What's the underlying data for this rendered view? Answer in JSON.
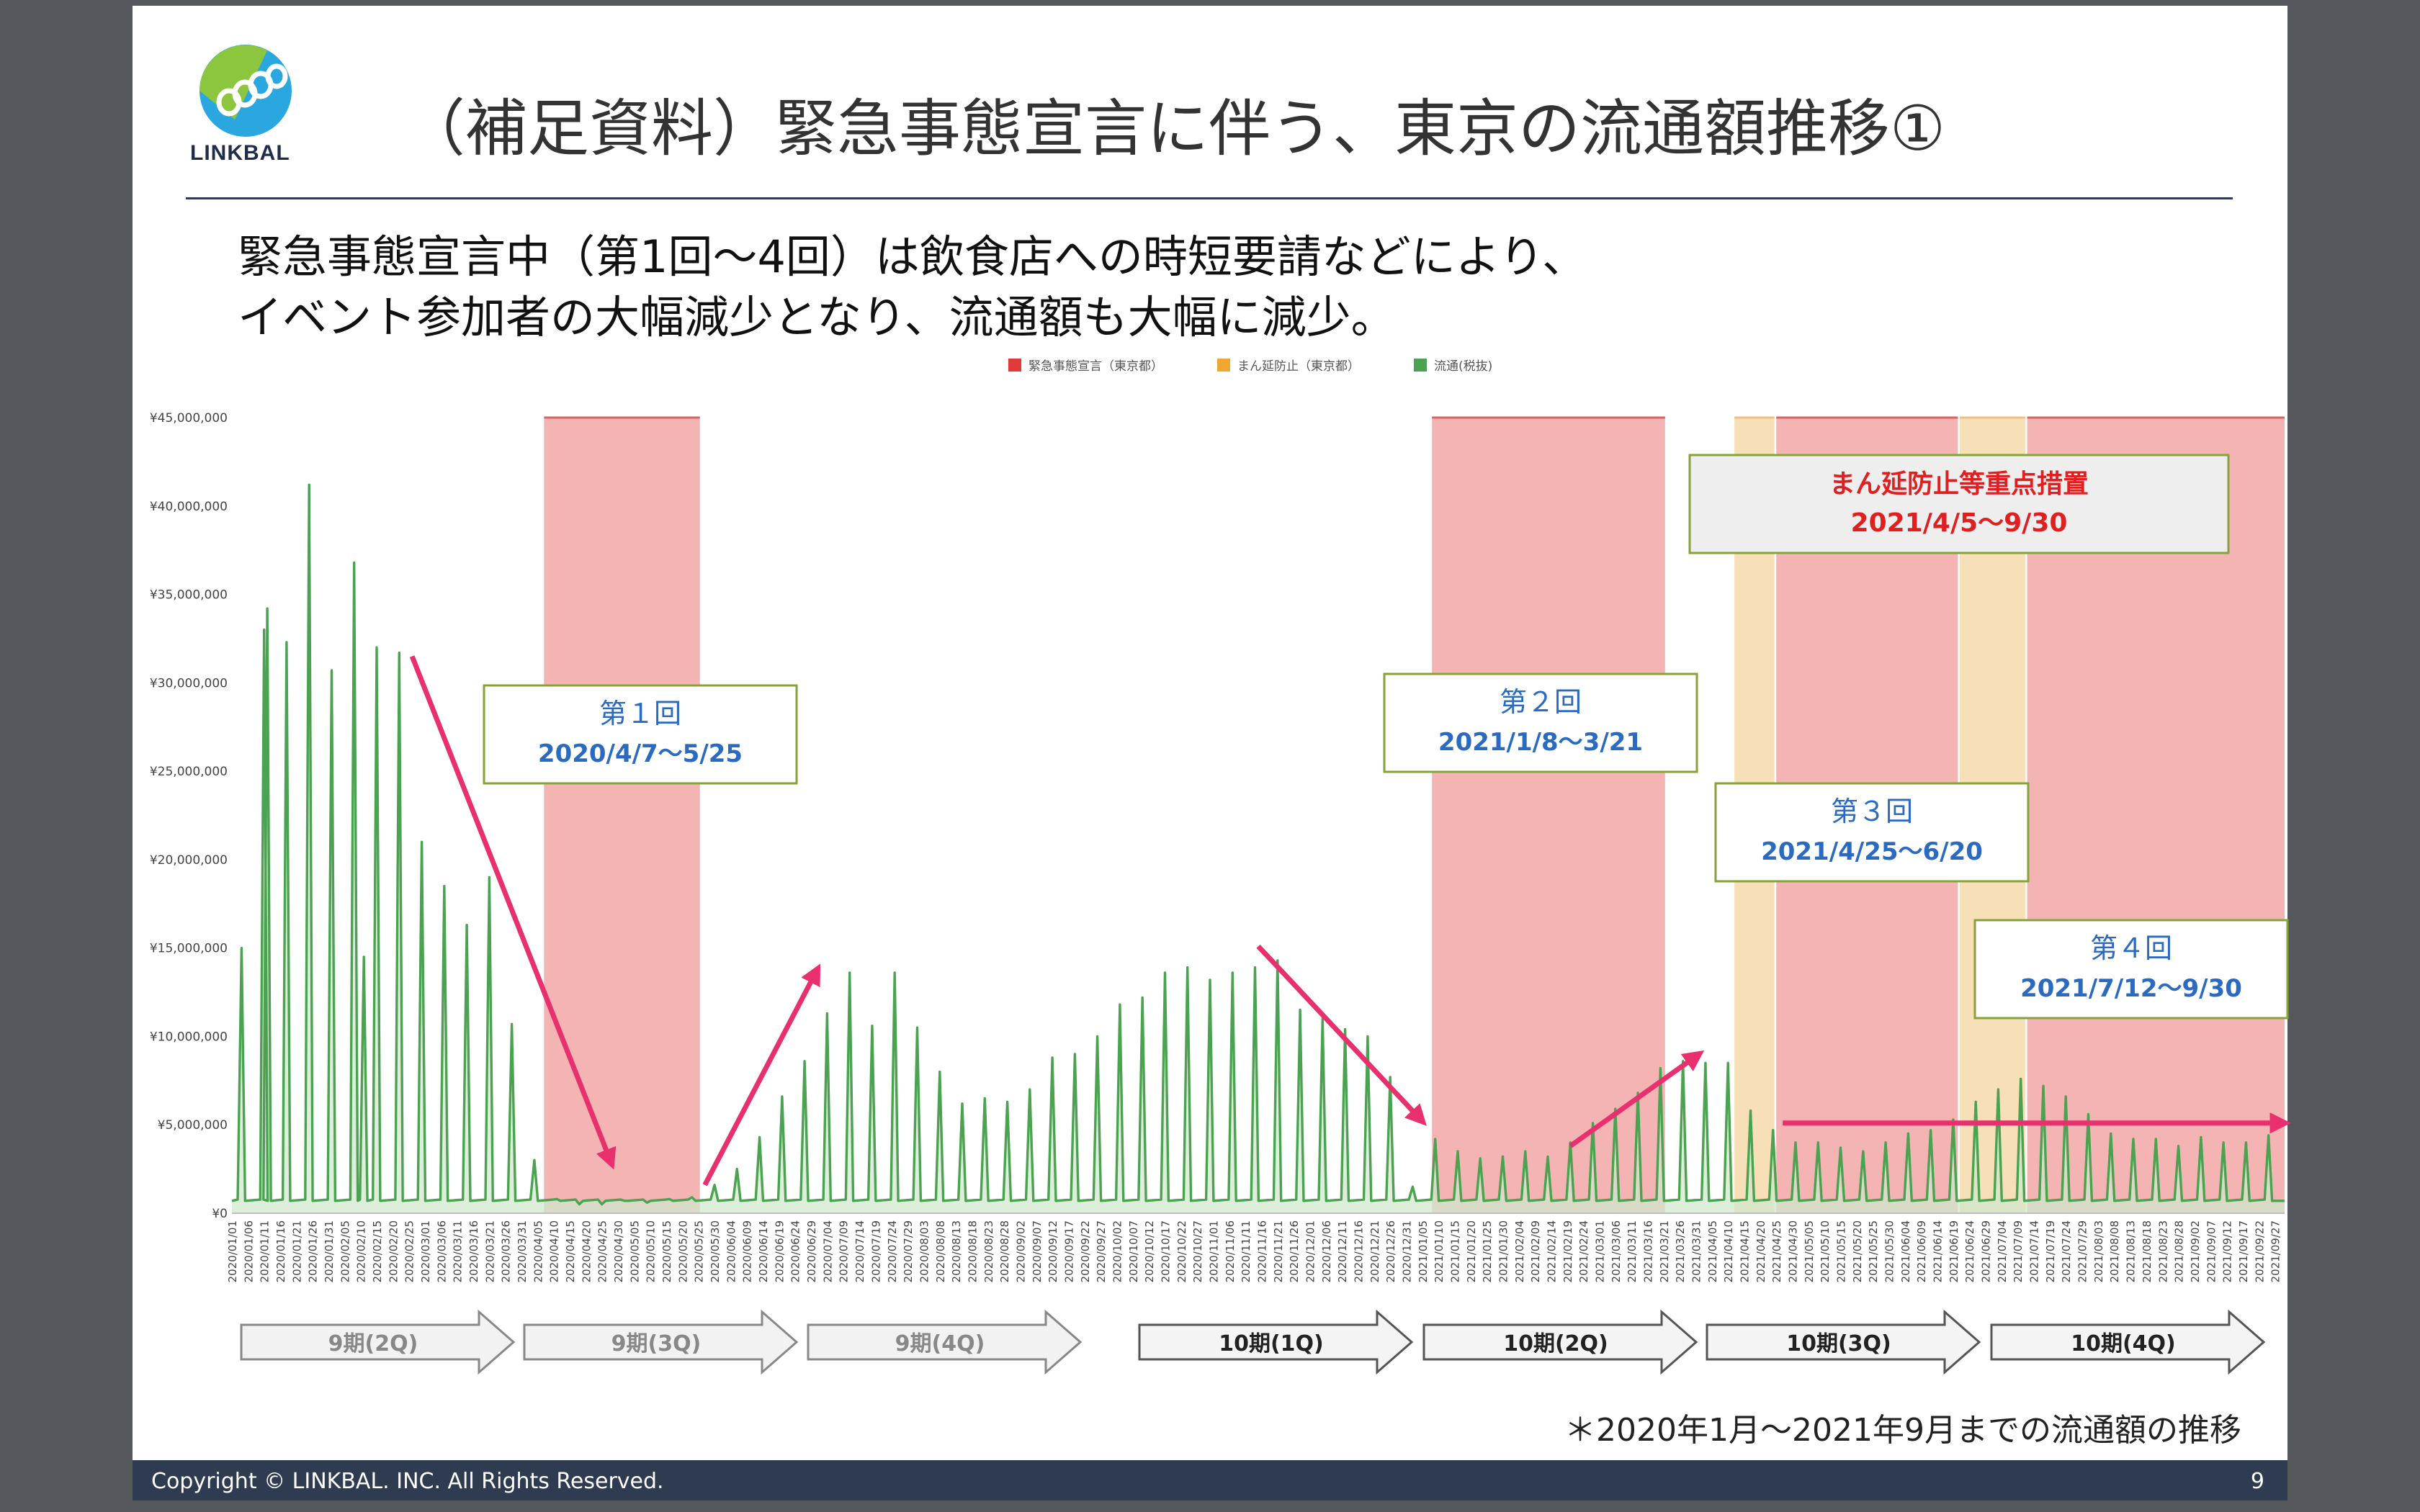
{
  "title": "（補足資料）緊急事態宣言に伴う、東京の流通額推移①",
  "logo_text": "LINKBAL",
  "subtitle_lines": [
    "緊急事態宣言中（第1回〜4回）は飲食店への時短要請などにより、",
    "イベント参加者の大幅減少となり、流通額も大幅に減少。"
  ],
  "footer": {
    "copyright": "Copyright © LINKBAL. INC. All Rights Reserved.",
    "page": "9"
  },
  "note": "＊2020年1月〜2021年9月までの流通額の推移",
  "colors": {
    "emergency": "#f4b4b4",
    "semi": "#f7dfb7",
    "line": "#4ba251",
    "fill": "#d2e8cd",
    "arrow": "#e8306f",
    "callout_border": "#86a33a",
    "callout_text": "#2a6ac0",
    "mambo_text": "#e02020"
  },
  "chart_data": {
    "type": "area",
    "y_ticks": [
      "¥45,000,000",
      "¥40,000,000",
      "¥35,000,000",
      "¥30,000,000",
      "¥25,000,000",
      "¥20,000,000",
      "¥15,000,000",
      "¥10,000,000",
      "¥5,000,000",
      "¥0"
    ],
    "ylim": [
      0,
      45000000
    ],
    "xlim": [
      "2020-01-01",
      "2021-09-30"
    ],
    "legend": [
      {
        "label": "緊急事態宣言（東京都）",
        "color": "#e03a3a"
      },
      {
        "label": "まん延防止（東京都）",
        "color": "#f0a830"
      },
      {
        "label": "流通(税抜)",
        "color": "#4ba251"
      }
    ],
    "x_ticks": [
      "2020/01/01",
      "2020/01/06",
      "2020/01/11",
      "2020/01/16",
      "2020/01/21",
      "2020/01/26",
      "2020/01/31",
      "2020/02/05",
      "2020/02/10",
      "2020/02/15",
      "2020/02/20",
      "2020/02/25",
      "2020/03/01",
      "2020/03/06",
      "2020/03/11",
      "2020/03/16",
      "2020/03/21",
      "2020/03/26",
      "2020/03/31",
      "2020/04/05",
      "2020/04/10",
      "2020/04/15",
      "2020/04/20",
      "2020/04/25",
      "2020/04/30",
      "2020/05/05",
      "2020/05/10",
      "2020/05/15",
      "2020/05/20",
      "2020/05/25",
      "2020/05/30",
      "2020/06/04",
      "2020/06/09",
      "2020/06/14",
      "2020/06/19",
      "2020/06/24",
      "2020/06/29",
      "2020/07/04",
      "2020/07/09",
      "2020/07/14",
      "2020/07/19",
      "2020/07/24",
      "2020/07/29",
      "2020/08/03",
      "2020/08/08",
      "2020/08/13",
      "2020/08/18",
      "2020/08/23",
      "2020/08/28",
      "2020/09/02",
      "2020/09/07",
      "2020/09/12",
      "2020/09/17",
      "2020/09/22",
      "2020/09/27",
      "2020/10/02",
      "2020/10/07",
      "2020/10/12",
      "2020/10/17",
      "2020/10/22",
      "2020/10/27",
      "2020/11/01",
      "2020/11/06",
      "2020/11/11",
      "2020/11/16",
      "2020/11/21",
      "2020/11/26",
      "2020/12/01",
      "2020/12/06",
      "2020/12/11",
      "2020/12/16",
      "2020/12/21",
      "2020/12/26",
      "2020/12/31",
      "2021/01/05",
      "2021/01/10",
      "2021/01/15",
      "2021/01/20",
      "2021/01/25",
      "2021/01/30",
      "2021/02/04",
      "2021/02/09",
      "2021/02/14",
      "2021/02/19",
      "2021/02/24",
      "2021/03/01",
      "2021/03/06",
      "2021/03/11",
      "2021/03/16",
      "2021/03/21",
      "2021/03/26",
      "2021/03/31",
      "2021/04/05",
      "2021/04/10",
      "2021/04/15",
      "2021/04/20",
      "2021/04/25",
      "2021/04/30",
      "2021/05/05",
      "2021/05/10",
      "2021/05/15",
      "2021/05/20",
      "2021/05/25",
      "2021/05/30",
      "2021/06/04",
      "2021/06/09",
      "2021/06/14",
      "2021/06/19",
      "2021/06/24",
      "2021/06/29",
      "2021/07/04",
      "2021/07/09",
      "2021/07/14",
      "2021/07/19",
      "2021/07/24",
      "2021/07/29",
      "2021/08/03",
      "2021/08/08",
      "2021/08/13",
      "2021/08/18",
      "2021/08/23",
      "2021/08/28",
      "2021/09/02",
      "2021/09/07",
      "2021/09/12",
      "2021/09/17",
      "2021/09/22",
      "2021/09/27"
    ],
    "periods": [
      {
        "type": "emergency",
        "start": "2020-04-07",
        "end": "2020-05-25"
      },
      {
        "type": "emergency",
        "start": "2021-01-08",
        "end": "2021-03-21"
      },
      {
        "type": "semi",
        "start": "2021-04-12",
        "end": "2021-04-24"
      },
      {
        "type": "emergency",
        "start": "2021-04-25",
        "end": "2021-06-20"
      },
      {
        "type": "semi",
        "start": "2021-06-21",
        "end": "2021-07-11"
      },
      {
        "type": "emergency",
        "start": "2021-07-12",
        "end": "2021-09-30"
      }
    ],
    "weekly_peaks": [
      {
        "date": "2020-01-04",
        "value": 15000000
      },
      {
        "date": "2020-01-11",
        "value": 33000000
      },
      {
        "date": "2020-01-12",
        "value": 34200000
      },
      {
        "date": "2020-01-18",
        "value": 32300000
      },
      {
        "date": "2020-01-25",
        "value": 41200000
      },
      {
        "date": "2020-02-01",
        "value": 30700000
      },
      {
        "date": "2020-02-08",
        "value": 36800000
      },
      {
        "date": "2020-02-11",
        "value": 14500000
      },
      {
        "date": "2020-02-15",
        "value": 32000000
      },
      {
        "date": "2020-02-22",
        "value": 31700000
      },
      {
        "date": "2020-02-29",
        "value": 21000000
      },
      {
        "date": "2020-03-07",
        "value": 18500000
      },
      {
        "date": "2020-03-14",
        "value": 16300000
      },
      {
        "date": "2020-03-21",
        "value": 19000000
      },
      {
        "date": "2020-03-28",
        "value": 10700000
      },
      {
        "date": "2020-04-04",
        "value": 3000000
      },
      {
        "date": "2020-04-11",
        "value": 800000
      },
      {
        "date": "2020-04-18",
        "value": 500000
      },
      {
        "date": "2020-04-25",
        "value": 500000
      },
      {
        "date": "2020-05-02",
        "value": 700000
      },
      {
        "date": "2020-05-09",
        "value": 600000
      },
      {
        "date": "2020-05-16",
        "value": 800000
      },
      {
        "date": "2020-05-23",
        "value": 900000
      },
      {
        "date": "2020-05-30",
        "value": 1600000
      },
      {
        "date": "2020-06-06",
        "value": 2500000
      },
      {
        "date": "2020-06-13",
        "value": 4300000
      },
      {
        "date": "2020-06-20",
        "value": 6600000
      },
      {
        "date": "2020-06-27",
        "value": 8600000
      },
      {
        "date": "2020-07-04",
        "value": 11300000
      },
      {
        "date": "2020-07-11",
        "value": 13600000
      },
      {
        "date": "2020-07-18",
        "value": 10600000
      },
      {
        "date": "2020-07-25",
        "value": 13600000
      },
      {
        "date": "2020-08-01",
        "value": 10500000
      },
      {
        "date": "2020-08-08",
        "value": 8000000
      },
      {
        "date": "2020-08-15",
        "value": 6200000
      },
      {
        "date": "2020-08-22",
        "value": 6500000
      },
      {
        "date": "2020-08-29",
        "value": 6300000
      },
      {
        "date": "2020-09-05",
        "value": 7000000
      },
      {
        "date": "2020-09-12",
        "value": 8800000
      },
      {
        "date": "2020-09-19",
        "value": 9000000
      },
      {
        "date": "2020-09-26",
        "value": 10000000
      },
      {
        "date": "2020-10-03",
        "value": 11800000
      },
      {
        "date": "2020-10-10",
        "value": 12200000
      },
      {
        "date": "2020-10-17",
        "value": 13600000
      },
      {
        "date": "2020-10-24",
        "value": 13900000
      },
      {
        "date": "2020-10-31",
        "value": 13200000
      },
      {
        "date": "2020-11-07",
        "value": 13600000
      },
      {
        "date": "2020-11-14",
        "value": 13900000
      },
      {
        "date": "2020-11-21",
        "value": 14300000
      },
      {
        "date": "2020-11-28",
        "value": 11500000
      },
      {
        "date": "2020-12-05",
        "value": 11000000
      },
      {
        "date": "2020-12-12",
        "value": 10400000
      },
      {
        "date": "2020-12-19",
        "value": 10000000
      },
      {
        "date": "2020-12-26",
        "value": 7700000
      },
      {
        "date": "2021-01-02",
        "value": 1500000
      },
      {
        "date": "2021-01-09",
        "value": 4200000
      },
      {
        "date": "2021-01-16",
        "value": 3500000
      },
      {
        "date": "2021-01-23",
        "value": 3100000
      },
      {
        "date": "2021-01-30",
        "value": 3200000
      },
      {
        "date": "2021-02-06",
        "value": 3500000
      },
      {
        "date": "2021-02-13",
        "value": 3200000
      },
      {
        "date": "2021-02-20",
        "value": 4000000
      },
      {
        "date": "2021-02-27",
        "value": 5100000
      },
      {
        "date": "2021-03-06",
        "value": 5900000
      },
      {
        "date": "2021-03-13",
        "value": 6800000
      },
      {
        "date": "2021-03-20",
        "value": 8200000
      },
      {
        "date": "2021-03-27",
        "value": 8600000
      },
      {
        "date": "2021-04-03",
        "value": 8500000
      },
      {
        "date": "2021-04-10",
        "value": 8500000
      },
      {
        "date": "2021-04-17",
        "value": 5800000
      },
      {
        "date": "2021-04-24",
        "value": 4700000
      },
      {
        "date": "2021-05-01",
        "value": 4000000
      },
      {
        "date": "2021-05-08",
        "value": 4000000
      },
      {
        "date": "2021-05-15",
        "value": 3700000
      },
      {
        "date": "2021-05-22",
        "value": 3500000
      },
      {
        "date": "2021-05-29",
        "value": 4000000
      },
      {
        "date": "2021-06-05",
        "value": 4500000
      },
      {
        "date": "2021-06-12",
        "value": 4700000
      },
      {
        "date": "2021-06-19",
        "value": 5300000
      },
      {
        "date": "2021-06-26",
        "value": 6300000
      },
      {
        "date": "2021-07-03",
        "value": 7000000
      },
      {
        "date": "2021-07-10",
        "value": 7600000
      },
      {
        "date": "2021-07-17",
        "value": 7200000
      },
      {
        "date": "2021-07-24",
        "value": 6600000
      },
      {
        "date": "2021-07-31",
        "value": 5600000
      },
      {
        "date": "2021-08-07",
        "value": 4500000
      },
      {
        "date": "2021-08-14",
        "value": 4200000
      },
      {
        "date": "2021-08-21",
        "value": 4200000
      },
      {
        "date": "2021-08-28",
        "value": 3800000
      },
      {
        "date": "2021-09-04",
        "value": 4300000
      },
      {
        "date": "2021-09-11",
        "value": 4000000
      },
      {
        "date": "2021-09-18",
        "value": 4000000
      },
      {
        "date": "2021-09-25",
        "value": 4400000
      }
    ],
    "weekday_baseline": 700000,
    "annotations": [
      {
        "lines": [
          "第１回",
          "2020/4/7〜5/25"
        ]
      },
      {
        "lines": [
          "第２回",
          "2021/1/8〜3/21"
        ]
      },
      {
        "lines": [
          "第３回",
          "2021/4/25〜6/20"
        ]
      },
      {
        "lines": [
          "第４回",
          "2021/7/12〜9/30"
        ]
      },
      {
        "lines": [
          "まん延防止等重点措置",
          "2021/4/5〜9/30"
        ]
      }
    ],
    "trend_arrows": [
      {
        "from": [
          "2020-02-26",
          31500000
        ],
        "to": [
          "2020-04-28",
          2800000
        ]
      },
      {
        "from": [
          "2020-05-27",
          1600000
        ],
        "to": [
          "2020-07-01",
          13800000
        ]
      },
      {
        "from": [
          "2020-11-15",
          15100000
        ],
        "to": [
          "2021-01-05",
          5200000
        ]
      },
      {
        "from": [
          "2021-02-20",
          3800000
        ],
        "to": [
          "2021-04-01",
          9000000
        ]
      },
      {
        "from": [
          "2021-04-27",
          5100000
        ],
        "to": [
          "2021-09-30",
          5100000
        ]
      }
    ],
    "fiscal_periods": [
      {
        "label": "9期(2Q)",
        "style": "faded"
      },
      {
        "label": "9期(3Q)",
        "style": "faded"
      },
      {
        "label": "9期(4Q)",
        "style": "faded"
      },
      {
        "label": "10期(1Q)",
        "style": "bold"
      },
      {
        "label": "10期(2Q)",
        "style": "bold"
      },
      {
        "label": "10期(3Q)",
        "style": "bold"
      },
      {
        "label": "10期(4Q)",
        "style": "bold"
      }
    ]
  }
}
